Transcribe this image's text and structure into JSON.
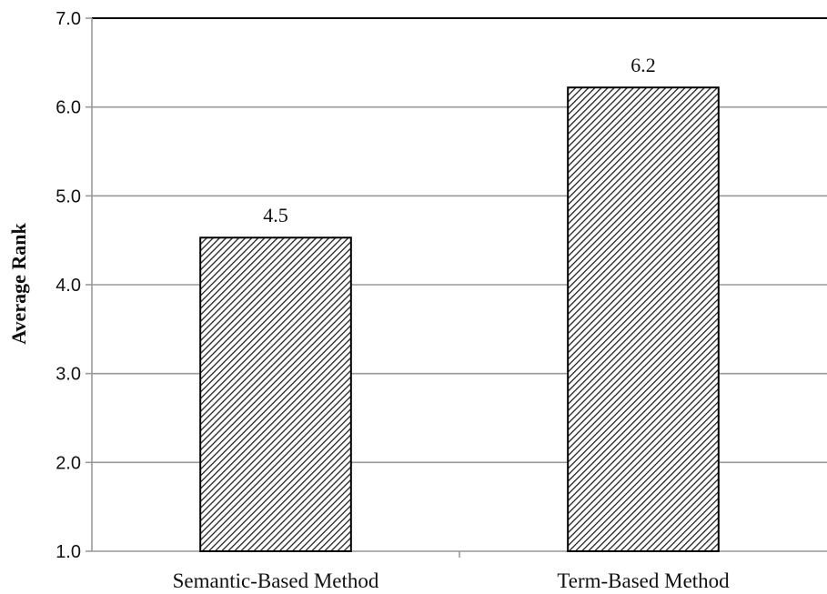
{
  "chart_data": {
    "type": "bar",
    "title": "",
    "xlabel": "",
    "ylabel": "Average Rank",
    "categories": [
      "Semantic-Based Method",
      "Term-Based Method"
    ],
    "values": [
      4.53,
      6.22
    ],
    "data_labels": [
      "4.5",
      "6.2"
    ],
    "ylim": [
      1.0,
      7.0
    ],
    "yticks": [
      1.0,
      2.0,
      3.0,
      4.0,
      5.0,
      6.0,
      7.0
    ],
    "ytick_labels": [
      "1.0",
      "2.0",
      "3.0",
      "4.0",
      "5.0",
      "6.0",
      "7.0"
    ],
    "grid": "horizontal",
    "legend": "none",
    "bar_fill": "diagonal hatch",
    "colors": {
      "bar_stroke": "#000000",
      "hatch": "#222222",
      "grid": "#999999",
      "axis": "#999999"
    }
  }
}
